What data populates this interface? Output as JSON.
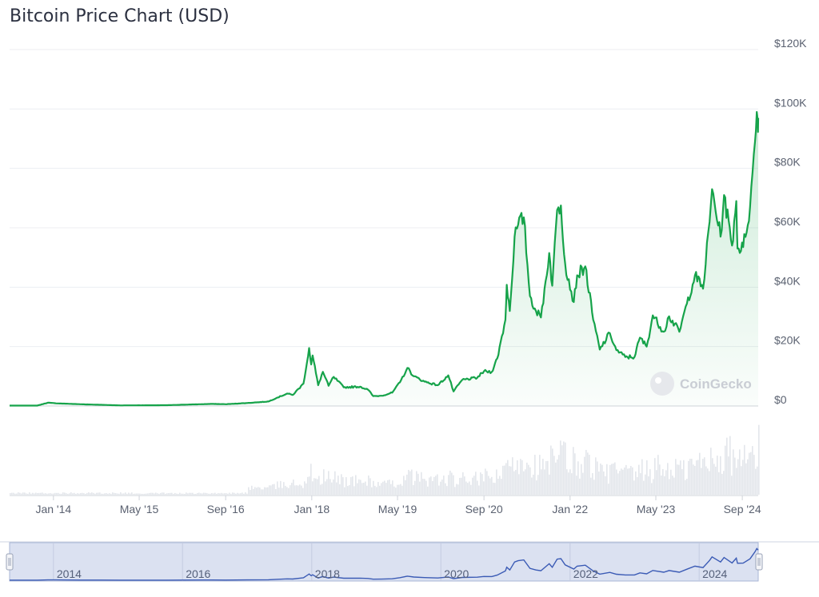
{
  "chart_data": {
    "type": "line",
    "title": "Bitcoin Price Chart (USD)",
    "watermark": "CoinGecko",
    "series": [
      {
        "values": [
          [
            "2013-04-28",
            140
          ],
          [
            "2013-10-01",
            130
          ],
          [
            "2013-11-30",
            1100
          ],
          [
            "2014-01-15",
            900
          ],
          [
            "2014-06-01",
            600
          ],
          [
            "2015-01-15",
            200
          ],
          [
            "2015-05-01",
            230
          ],
          [
            "2015-10-01",
            260
          ],
          [
            "2016-01-01",
            430
          ],
          [
            "2016-06-15",
            700
          ],
          [
            "2016-09-01",
            600
          ],
          [
            "2017-01-01",
            1000
          ],
          [
            "2017-05-01",
            1500
          ],
          [
            "2017-06-15",
            2700
          ],
          [
            "2017-08-15",
            4200
          ],
          [
            "2017-09-15",
            3700
          ],
          [
            "2017-11-15",
            7500
          ],
          [
            "2017-12-17",
            19500
          ],
          [
            "2017-12-29",
            14000
          ],
          [
            "2018-01-06",
            17000
          ],
          [
            "2018-02-06",
            7000
          ],
          [
            "2018-03-05",
            11500
          ],
          [
            "2018-04-06",
            6800
          ],
          [
            "2018-05-05",
            9800
          ],
          [
            "2018-07-01",
            6300
          ],
          [
            "2018-10-01",
            6500
          ],
          [
            "2018-11-15",
            5500
          ],
          [
            "2018-12-15",
            3300
          ],
          [
            "2019-02-01",
            3450
          ],
          [
            "2019-04-01",
            4500
          ],
          [
            "2019-05-15",
            8000
          ],
          [
            "2019-06-26",
            12800
          ],
          [
            "2019-08-01",
            10000
          ],
          [
            "2019-10-01",
            8200
          ],
          [
            "2019-12-15",
            7000
          ],
          [
            "2020-02-12",
            10300
          ],
          [
            "2020-03-13",
            4900
          ],
          [
            "2020-05-01",
            8800
          ],
          [
            "2020-07-25",
            9500
          ],
          [
            "2020-09-01",
            11700
          ],
          [
            "2020-10-15",
            11500
          ],
          [
            "2020-11-15",
            16000
          ],
          [
            "2020-12-31",
            29000
          ],
          [
            "2021-01-08",
            40800
          ],
          [
            "2021-01-25",
            32000
          ],
          [
            "2021-02-21",
            57000
          ],
          [
            "2021-03-13",
            61000
          ],
          [
            "2021-04-14",
            63500
          ],
          [
            "2021-05-19",
            37000
          ],
          [
            "2021-06-22",
            32000
          ],
          [
            "2021-07-20",
            29800
          ],
          [
            "2021-09-05",
            51500
          ],
          [
            "2021-09-22",
            40500
          ],
          [
            "2021-10-20",
            66000
          ],
          [
            "2021-11-10",
            67500
          ],
          [
            "2021-12-04",
            48000
          ],
          [
            "2022-01-22",
            35000
          ],
          [
            "2022-02-10",
            44000
          ],
          [
            "2022-03-28",
            47000
          ],
          [
            "2022-05-12",
            29000
          ],
          [
            "2022-06-18",
            19000
          ],
          [
            "2022-08-14",
            24500
          ],
          [
            "2022-09-20",
            18800
          ],
          [
            "2022-11-09",
            16500
          ],
          [
            "2022-12-31",
            16500
          ],
          [
            "2023-01-31",
            23000
          ],
          [
            "2023-03-10",
            20000
          ],
          [
            "2023-04-14",
            30500
          ],
          [
            "2023-06-15",
            25000
          ],
          [
            "2023-07-15",
            30200
          ],
          [
            "2023-09-11",
            25000
          ],
          [
            "2023-10-24",
            34500
          ],
          [
            "2023-12-08",
            44000
          ],
          [
            "2024-01-23",
            39500
          ],
          [
            "2024-02-29",
            62000
          ],
          [
            "2024-03-14",
            73000
          ],
          [
            "2024-05-01",
            57000
          ],
          [
            "2024-05-21",
            71000
          ],
          [
            "2024-07-05",
            54000
          ],
          [
            "2024-07-29",
            69000
          ],
          [
            "2024-08-05",
            53000
          ],
          [
            "2024-09-06",
            53500
          ],
          [
            "2024-10-15",
            67000
          ],
          [
            "2024-11-12",
            89000
          ],
          [
            "2024-11-22",
            99000
          ],
          [
            "2024-11-27",
            95500
          ],
          [
            "2024-11-30",
            97000
          ]
        ]
      }
    ],
    "ylim": [
      0,
      120000
    ],
    "y_ticks": [
      "$120K",
      "$100K",
      "$80K",
      "$60K",
      "$40K",
      "$20K",
      "$0"
    ],
    "x_ticks": [
      "Jan '14",
      "May '15",
      "Sep '16",
      "Jan '18",
      "May '19",
      "Sep '20",
      "Jan '22",
      "May '23",
      "Sep '24"
    ],
    "navigator_ticks": [
      "2014",
      "2016",
      "2018",
      "2020",
      "2022",
      "2024"
    ],
    "colors": {
      "line": "#16a34a",
      "navigator_line": "#3b5bb5",
      "navigator_band": "#dbe1f1"
    },
    "grid": true
  }
}
